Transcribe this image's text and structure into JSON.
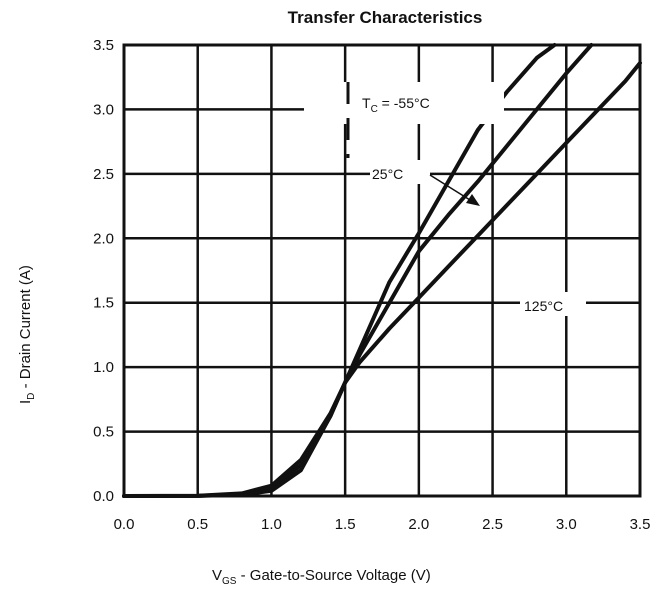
{
  "chart_data": {
    "type": "line",
    "title": "Transfer Characteristics",
    "xlabel": {
      "main": "V",
      "sub": "GS",
      "rest": " - Gate-to-Source Voltage (V)"
    },
    "ylabel": {
      "main": "I",
      "sub": "D",
      "rest": " - Drain Current (A)"
    },
    "xlim": [
      0,
      3.5
    ],
    "ylim": [
      0,
      3.5
    ],
    "xticks": [
      "0.0",
      "0.5",
      "1.0",
      "1.5",
      "2.0",
      "2.5",
      "3.0",
      "3.5"
    ],
    "yticks": [
      "0.0",
      "0.5",
      "1.0",
      "1.5",
      "2.0",
      "2.5",
      "3.0",
      "3.5"
    ],
    "grid": true,
    "series": [
      {
        "name": "-55°C",
        "x": [
          0,
          0.5,
          0.8,
          1.0,
          1.2,
          1.4,
          1.5,
          1.6,
          1.8,
          2.0,
          2.2,
          2.4,
          2.6,
          2.8,
          2.92
        ],
        "y": [
          0,
          0.002,
          0.02,
          0.08,
          0.28,
          0.64,
          0.88,
          1.14,
          1.66,
          2.04,
          2.44,
          2.84,
          3.14,
          3.4,
          3.5
        ]
      },
      {
        "name": "25°C",
        "x": [
          0,
          0.5,
          0.8,
          1.0,
          1.2,
          1.4,
          1.5,
          1.6,
          1.8,
          2.0,
          2.2,
          2.4,
          2.6,
          2.8,
          3.0,
          3.17
        ],
        "y": [
          0,
          0.001,
          0.015,
          0.06,
          0.24,
          0.62,
          0.88,
          1.1,
          1.5,
          1.9,
          2.18,
          2.44,
          2.72,
          3.0,
          3.28,
          3.5
        ]
      },
      {
        "name": "125°C",
        "x": [
          0,
          0.5,
          0.8,
          1.0,
          1.2,
          1.4,
          1.5,
          1.6,
          1.8,
          2.0,
          2.2,
          2.4,
          2.6,
          2.8,
          3.0,
          3.2,
          3.4,
          3.5
        ],
        "y": [
          0,
          0.001,
          0.01,
          0.04,
          0.2,
          0.62,
          0.88,
          1.04,
          1.3,
          1.54,
          1.78,
          2.02,
          2.26,
          2.5,
          2.74,
          2.98,
          3.22,
          3.36
        ]
      }
    ],
    "annotations": {
      "tc_label": {
        "main": "T",
        "sub": "C",
        "rest": " = -55°C"
      },
      "mid_label": "25°C",
      "hot_label": "125°C"
    }
  }
}
